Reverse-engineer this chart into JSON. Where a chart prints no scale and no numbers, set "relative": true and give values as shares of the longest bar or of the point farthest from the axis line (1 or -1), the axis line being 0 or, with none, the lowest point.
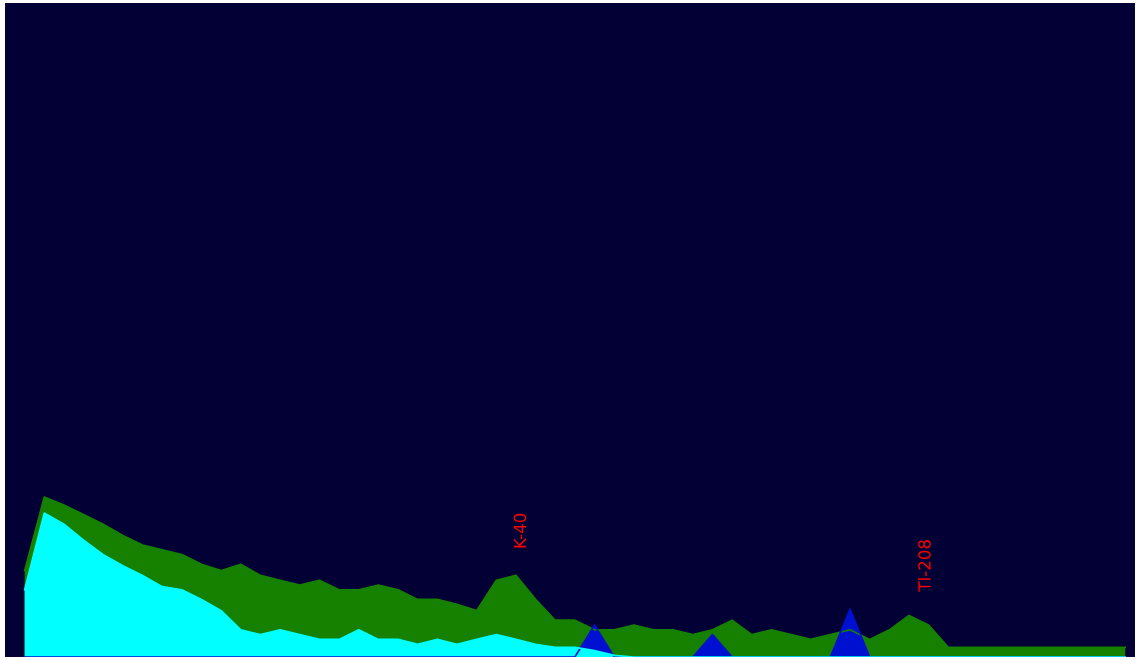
{
  "chart_data": {
    "type": "area",
    "relative": true,
    "categories": [
      null,
      null,
      null,
      null,
      null,
      null,
      null,
      null,
      null,
      null,
      null,
      null,
      null,
      null,
      null,
      null,
      null,
      null,
      null,
      null,
      null,
      null,
      null,
      null,
      null,
      null,
      null,
      null,
      null,
      null,
      null,
      null,
      null,
      null,
      null,
      null,
      null,
      null,
      null,
      null,
      null,
      null,
      null,
      null,
      null,
      null,
      null,
      null,
      null,
      null,
      null,
      null,
      null,
      null,
      null,
      null,
      null
    ],
    "series": [
      {
        "color": "#168000",
        "values": [
          0.54,
          1.0,
          0.95,
          0.89,
          0.83,
          0.76,
          0.7,
          0.67,
          0.64,
          0.58,
          0.54,
          0.58,
          0.51,
          0.48,
          0.45,
          0.48,
          0.42,
          0.42,
          0.45,
          0.42,
          0.36,
          0.36,
          0.33,
          0.29,
          0.48,
          0.51,
          0.36,
          0.23,
          0.23,
          0.17,
          0.17,
          0.2,
          0.17,
          0.17,
          0.14,
          0.17,
          0.23,
          0.14,
          0.17,
          0.14,
          0.11,
          0.14,
          0.17,
          0.11,
          0.17,
          0.26,
          0.2,
          0.06,
          0.06,
          0.06,
          0.06,
          0.06,
          0.06,
          0.06,
          0.06,
          0.06,
          0.06
        ]
      },
      {
        "color": "#0010d0",
        "values": [
          0,
          0,
          0,
          0,
          0,
          0,
          0,
          0,
          0,
          0,
          0,
          0,
          0,
          0,
          0,
          0,
          0,
          0,
          0,
          0,
          0,
          0,
          0,
          0,
          0,
          0,
          0,
          0,
          0,
          0.2,
          0,
          0,
          0,
          0,
          0,
          0.14,
          0,
          0,
          0,
          0,
          0,
          0,
          0.3,
          0,
          0,
          0,
          0,
          0,
          0,
          0,
          0,
          0,
          0,
          0,
          0,
          0,
          0
        ]
      },
      {
        "color": "#00ffff",
        "values": [
          0.42,
          0.9,
          0.83,
          0.73,
          0.64,
          0.57,
          0.51,
          0.44,
          0.42,
          0.36,
          0.29,
          0.17,
          0.14,
          0.17,
          0.14,
          0.11,
          0.11,
          0.17,
          0.11,
          0.11,
          0.08,
          0.11,
          0.08,
          0.11,
          0.14,
          0.11,
          0.08,
          0.06,
          0.06,
          0.04,
          0.01,
          0,
          0,
          0,
          0,
          0,
          0,
          0,
          0,
          0,
          0,
          0,
          0,
          0,
          0,
          0,
          0,
          0,
          0,
          0,
          0,
          0,
          0,
          0,
          0,
          0,
          0
        ]
      }
    ],
    "annotations": [
      "K-40",
      "Tl-208"
    ]
  }
}
